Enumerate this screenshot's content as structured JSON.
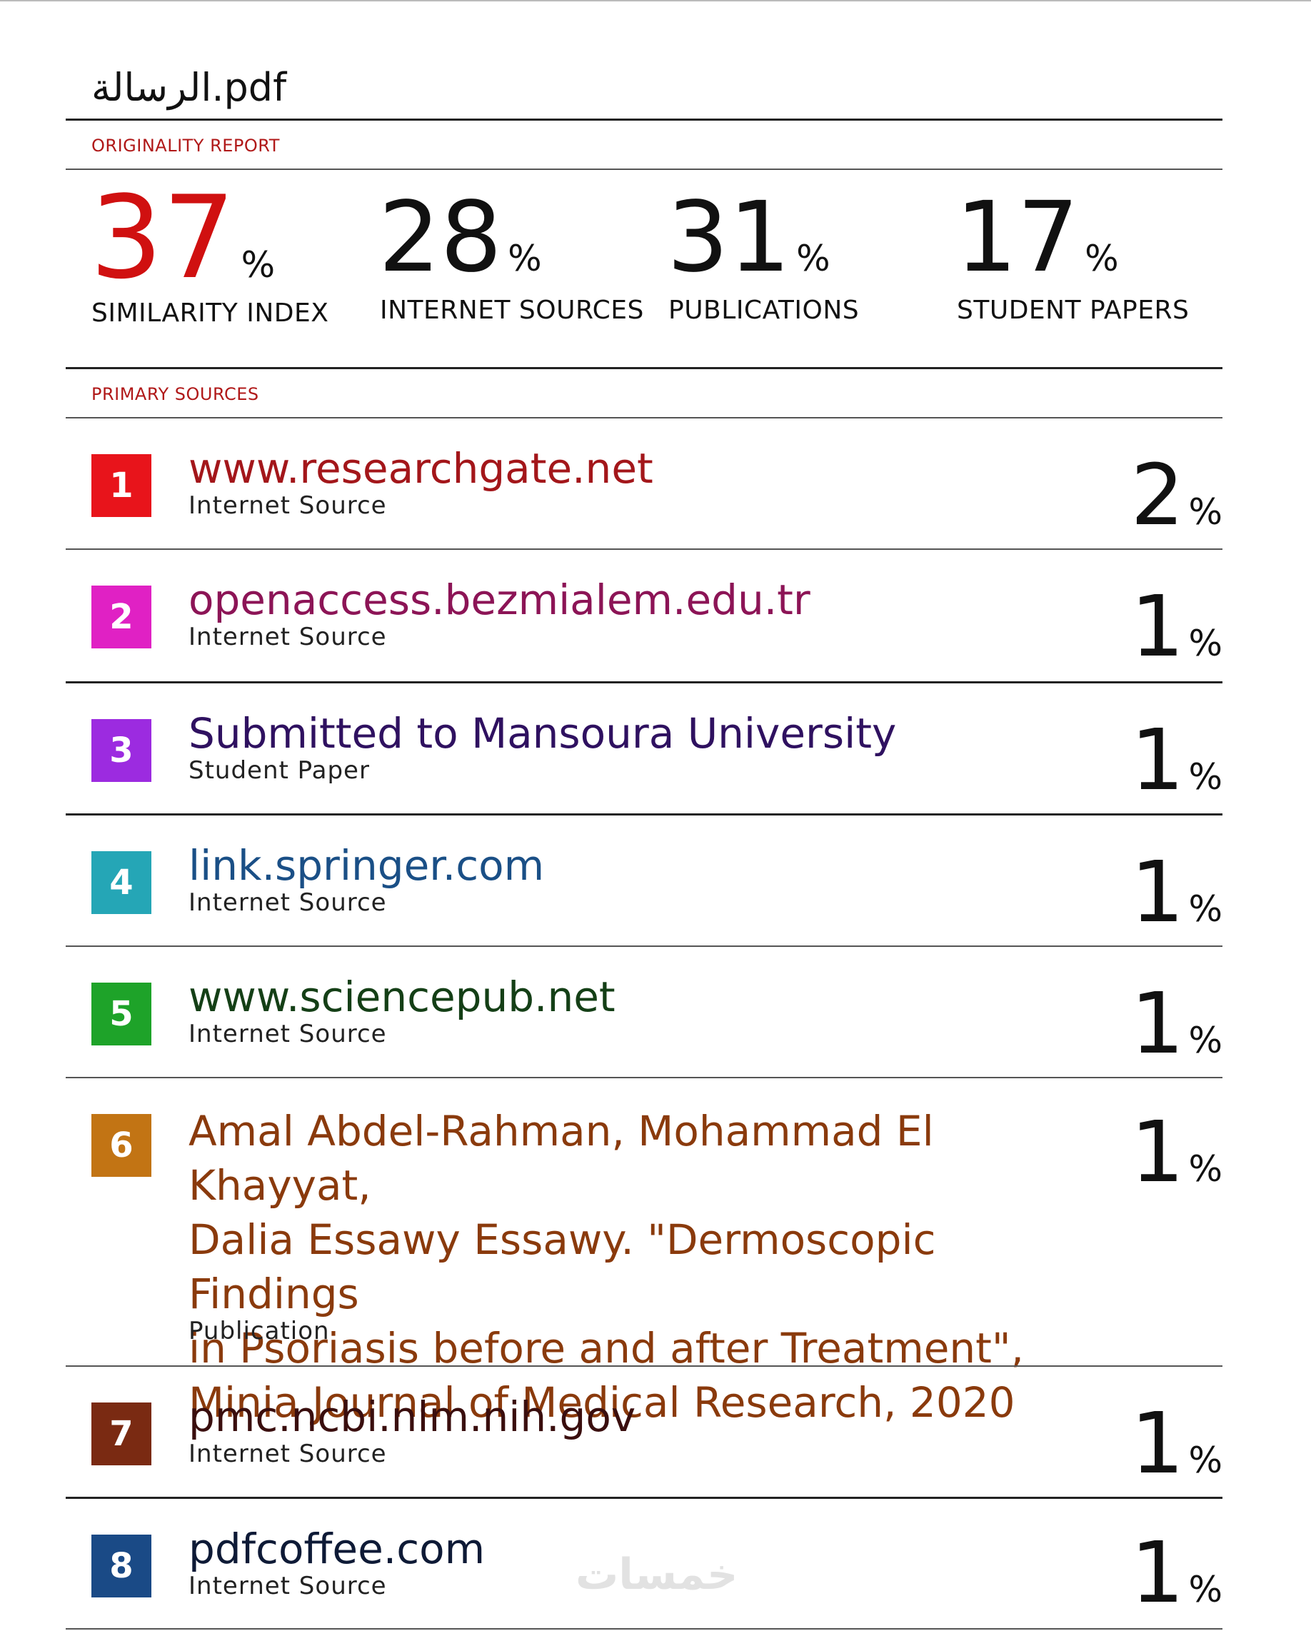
{
  "document": {
    "title": "الرسالة.pdf"
  },
  "report": {
    "section_label": "ORIGINALITY REPORT",
    "stats": [
      {
        "value": "37",
        "unit": "%",
        "label": "SIMILARITY INDEX",
        "color": "#d01010"
      },
      {
        "value": "28",
        "unit": "%",
        "label": "INTERNET SOURCES"
      },
      {
        "value": "31",
        "unit": "%",
        "label": "PUBLICATIONS"
      },
      {
        "value": "17",
        "unit": "%",
        "label": "STUDENT PAPERS"
      }
    ]
  },
  "primary_sources": {
    "section_label": "PRIMARY SOURCES",
    "items": [
      {
        "rank": "1",
        "badge_color": "#e8141b",
        "title_color": "#a3161a",
        "title": "www.researchgate.net",
        "type": "Internet Source",
        "percent": "2",
        "unit": "%"
      },
      {
        "rank": "2",
        "badge_color": "#e021c4",
        "title_color": "#8c1456",
        "title": "openaccess.bezmialem.edu.tr",
        "type": "Internet Source",
        "percent": "1",
        "unit": "%"
      },
      {
        "rank": "3",
        "badge_color": "#9c2be0",
        "title_color": "#2f1160",
        "title": "Submitted to Mansoura University",
        "type": "Student Paper",
        "percent": "1",
        "unit": "%"
      },
      {
        "rank": "4",
        "badge_color": "#25a6b6",
        "title_color": "#1a4f86",
        "title": "link.springer.com",
        "type": "Internet Source",
        "percent": "1",
        "unit": "%"
      },
      {
        "rank": "5",
        "badge_color": "#1ea329",
        "title_color": "#143f16",
        "title": "www.sciencepub.net",
        "type": "Internet Source",
        "percent": "1",
        "unit": "%"
      },
      {
        "rank": "6",
        "badge_color": "#c27414",
        "title_color": "#8a3a0c",
        "title": "Amal Abdel-Rahman, Mohammad El Khayyat,\nDalia Essawy Essawy. \"Dermoscopic Findings\nin Psoriasis before and after Treatment\",\nMinia Journal of Medical Research, 2020",
        "type": "Publication",
        "percent": "1",
        "unit": "%"
      },
      {
        "rank": "7",
        "badge_color": "#7a2a12",
        "title_color": "#3a0e0e",
        "title": "pmc.ncbi.nlm.nih.gov",
        "type": "Internet Source",
        "percent": "1",
        "unit": "%"
      },
      {
        "rank": "8",
        "badge_color": "#1a4a86",
        "title_color": "#0e1a36",
        "title": "pdfcoffee.com",
        "type": "Internet Source",
        "percent": "1",
        "unit": "%"
      }
    ]
  },
  "watermark": {
    "text": "خمسات"
  }
}
